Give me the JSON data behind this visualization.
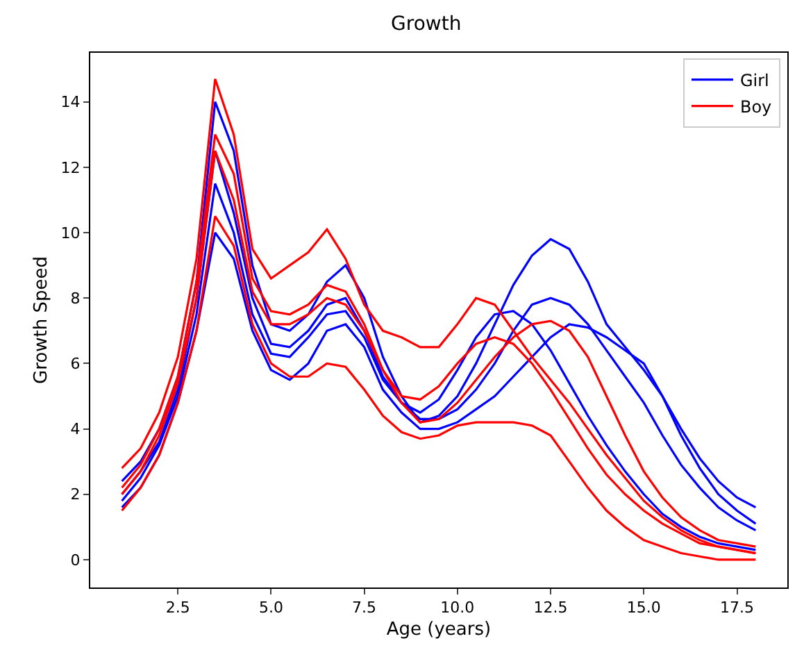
{
  "chart_data": {
    "type": "line",
    "title": "Growth",
    "xlabel": "Age (years)",
    "ylabel": "Growth Speed",
    "x": [
      1,
      1.5,
      2,
      2.5,
      3,
      3.5,
      4,
      4.5,
      5,
      5.5,
      6,
      6.5,
      7,
      7.5,
      8,
      8.5,
      9,
      9.5,
      10,
      10.5,
      11,
      11.5,
      12,
      12.5,
      13,
      13.5,
      14,
      14.5,
      15,
      15.5,
      16,
      16.5,
      17,
      17.5,
      18
    ],
    "xlim": [
      0.15,
      18.85
    ],
    "xticks": [
      {
        "value": 2.5,
        "label": "2.5"
      },
      {
        "value": 5,
        "label": "5.0"
      },
      {
        "value": 7.5,
        "label": "7.5"
      },
      {
        "value": 10,
        "label": "10.0"
      },
      {
        "value": 12.5,
        "label": "12.5"
      },
      {
        "value": 15,
        "label": "15.0"
      },
      {
        "value": 17.5,
        "label": "17.5"
      }
    ],
    "ylim": [
      -0.85,
      15.5
    ],
    "yticks": [
      0,
      2,
      4,
      6,
      8,
      10,
      12,
      14
    ],
    "grid": false,
    "legend": "top right",
    "marker": "none",
    "line_style": "solid",
    "series": [
      {
        "name": "Girl",
        "color": "#0000ff",
        "values": [
          1.8,
          2.5,
          3.5,
          5,
          7.5,
          11.5,
          10,
          7.5,
          6.3,
          6.2,
          6.8,
          7.5,
          7.6,
          6.8,
          5.5,
          4.8,
          4.3,
          4.3,
          4.6,
          5.2,
          6,
          7,
          7.8,
          8,
          7.8,
          7.2,
          6.4,
          5.6,
          4.8,
          3.8,
          2.9,
          2.2,
          1.6,
          1.2,
          0.9
        ]
      },
      {
        "color": "#0000ff",
        "values": [
          2.4,
          3,
          4,
          5.6,
          8.5,
          14,
          12.5,
          9,
          7.2,
          7,
          7.5,
          8.5,
          9,
          8,
          6.2,
          5,
          4.2,
          4.4,
          5,
          6,
          7.2,
          8.4,
          9.3,
          9.8,
          9.5,
          8.5,
          7.2,
          6.5,
          5.8,
          5,
          4,
          3.1,
          2.4,
          1.9,
          1.6
        ]
      },
      {
        "color": "#0000ff",
        "values": [
          1.6,
          2.2,
          3.2,
          4.8,
          7,
          10,
          9.2,
          7,
          5.8,
          5.5,
          6,
          7,
          7.2,
          6.5,
          5.2,
          4.5,
          4,
          4,
          4.2,
          4.6,
          5,
          5.6,
          6.2,
          6.8,
          7.2,
          7.1,
          6.8,
          6.4,
          6,
          5,
          3.8,
          2.8,
          2,
          1.5,
          1.1
        ]
      },
      {
        "color": "#0000ff",
        "values": [
          2,
          2.7,
          3.6,
          5.2,
          8,
          12.5,
          10.6,
          8,
          6.6,
          6.5,
          7,
          7.8,
          8,
          7,
          5.6,
          4.8,
          4.5,
          4.9,
          5.8,
          6.8,
          7.5,
          7.6,
          7.2,
          6.4,
          5.4,
          4.4,
          3.5,
          2.7,
          2,
          1.4,
          1,
          0.7,
          0.5,
          0.4,
          0.3
        ]
      },
      {
        "name": "Boy",
        "color": "#ff0000",
        "values": [
          2,
          2.7,
          3.8,
          5.4,
          8,
          12.5,
          11,
          8.2,
          7.2,
          7.2,
          7.5,
          8,
          7.8,
          7,
          5.8,
          5,
          4.9,
          5.3,
          6,
          6.6,
          6.8,
          6.6,
          6,
          5.2,
          4.3,
          3.4,
          2.6,
          2,
          1.5,
          1.1,
          0.8,
          0.5,
          0.4,
          0.3,
          0.2
        ]
      },
      {
        "color": "#ff0000",
        "values": [
          2.8,
          3.4,
          4.5,
          6.2,
          9.2,
          14.7,
          13,
          9.5,
          8.6,
          9,
          9.4,
          10.1,
          9.2,
          7.8,
          7,
          6.8,
          6.5,
          6.5,
          7.2,
          8,
          7.8,
          7,
          6.2,
          5.5,
          4.8,
          4,
          3.2,
          2.5,
          1.8,
          1.3,
          0.9,
          0.6,
          0.4,
          0.3,
          0.2
        ]
      },
      {
        "color": "#ff0000",
        "values": [
          1.5,
          2.2,
          3.2,
          4.8,
          7,
          10.5,
          9.6,
          7.2,
          6,
          5.6,
          5.6,
          6,
          5.9,
          5.2,
          4.4,
          3.9,
          3.7,
          3.8,
          4.1,
          4.2,
          4.2,
          4.2,
          4.1,
          3.8,
          3,
          2.2,
          1.5,
          1,
          0.6,
          0.4,
          0.2,
          0.1,
          0,
          0,
          0
        ]
      },
      {
        "color": "#ff0000",
        "values": [
          2.2,
          2.9,
          4,
          5.6,
          8.5,
          13,
          11.8,
          8.6,
          7.6,
          7.5,
          7.8,
          8.4,
          8.2,
          7.2,
          5.8,
          4.8,
          4.2,
          4.3,
          4.8,
          5.5,
          6.2,
          6.8,
          7.2,
          7.3,
          7,
          6.2,
          5,
          3.8,
          2.7,
          1.9,
          1.3,
          0.9,
          0.6,
          0.5,
          0.4
        ]
      }
    ]
  }
}
